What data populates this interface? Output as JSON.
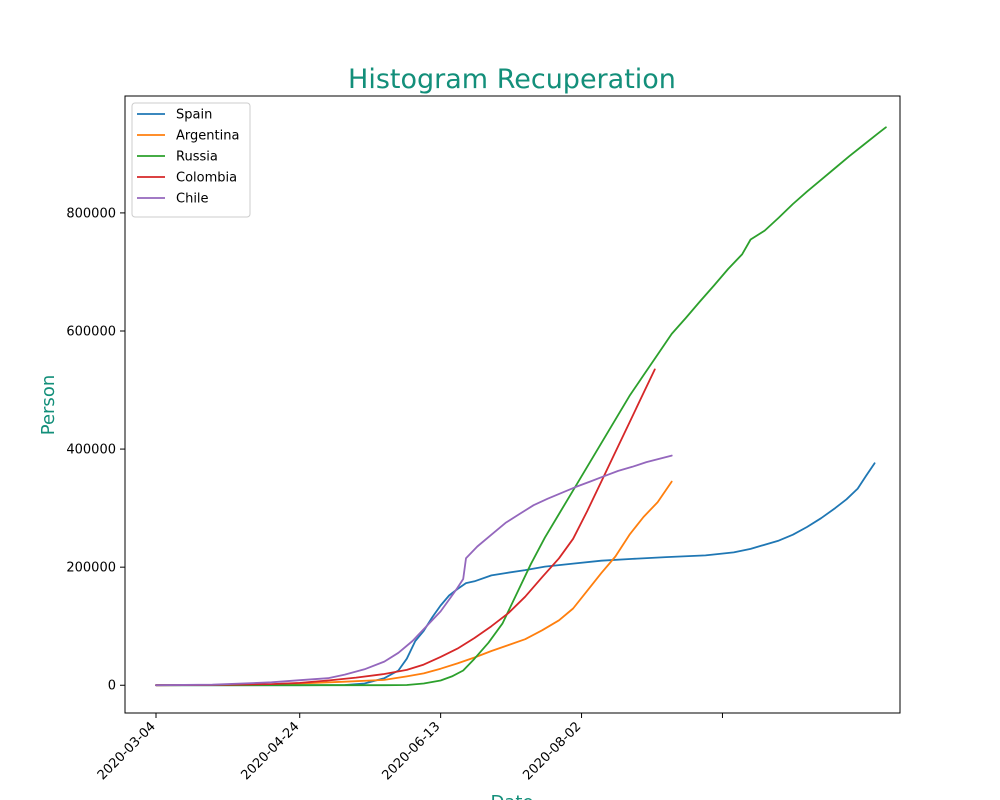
{
  "colors": {
    "title": "#138f7a",
    "axis_label": "#138f7a"
  },
  "chart_data": {
    "type": "line",
    "title": "Histogram Recuperation",
    "xlabel": "Date",
    "ylabel": "Person",
    "x_ticks": [
      {
        "date": "2020-03-04",
        "label": "2020-03-04"
      },
      {
        "date": "2020-04-24",
        "label": "2020-04-24"
      },
      {
        "date": "2020-06-13",
        "label": "2020-06-13"
      },
      {
        "date": "2020-08-02",
        "label": "2020-08-02"
      },
      {
        "date": "2020-09-21",
        "label": ""
      }
    ],
    "y_ticks": [
      {
        "value": 0,
        "label": "0"
      },
      {
        "value": 200000,
        "label": "200000"
      },
      {
        "value": 400000,
        "label": "400000"
      },
      {
        "value": 600000,
        "label": "600000"
      },
      {
        "value": 800000,
        "label": "800000"
      }
    ],
    "xlim": [
      "2020-02-22",
      "2020-11-23"
    ],
    "ylim": [
      -47000,
      998000
    ],
    "grid": false,
    "legend_position": "top-left",
    "series": [
      {
        "name": "Spain",
        "color": "#1f77b4",
        "points": [
          [
            "2020-03-04",
            0
          ],
          [
            "2020-03-24",
            0
          ],
          [
            "2020-04-24",
            0
          ],
          [
            "2020-05-10",
            500
          ],
          [
            "2020-05-17",
            3000
          ],
          [
            "2020-05-24",
            12000
          ],
          [
            "2020-05-29",
            25000
          ],
          [
            "2020-06-01",
            45000
          ],
          [
            "2020-06-04",
            75000
          ],
          [
            "2020-06-07",
            92000
          ],
          [
            "2020-06-10",
            115000
          ],
          [
            "2020-06-13",
            135000
          ],
          [
            "2020-06-16",
            152000
          ],
          [
            "2020-06-19",
            163000
          ],
          [
            "2020-06-22",
            173000
          ],
          [
            "2020-06-25",
            176000
          ],
          [
            "2020-07-01",
            186000
          ],
          [
            "2020-07-06",
            190000
          ],
          [
            "2020-07-13",
            195000
          ],
          [
            "2020-07-20",
            201000
          ],
          [
            "2020-07-30",
            206000
          ],
          [
            "2020-08-09",
            211000
          ],
          [
            "2020-08-20",
            214000
          ],
          [
            "2020-09-01",
            217000
          ],
          [
            "2020-09-15",
            220000
          ],
          [
            "2020-09-25",
            225000
          ],
          [
            "2020-10-01",
            231000
          ],
          [
            "2020-10-06",
            238000
          ],
          [
            "2020-10-11",
            245000
          ],
          [
            "2020-10-16",
            255000
          ],
          [
            "2020-10-21",
            268000
          ],
          [
            "2020-10-26",
            283000
          ],
          [
            "2020-10-31",
            300000
          ],
          [
            "2020-11-04",
            315000
          ],
          [
            "2020-11-08",
            333000
          ],
          [
            "2020-11-11",
            355000
          ],
          [
            "2020-11-14",
            376000
          ]
        ]
      },
      {
        "name": "Argentina",
        "color": "#ff7f0e",
        "points": [
          [
            "2020-03-04",
            0
          ],
          [
            "2020-03-24",
            500
          ],
          [
            "2020-04-14",
            1500
          ],
          [
            "2020-04-24",
            3000
          ],
          [
            "2020-05-10",
            6000
          ],
          [
            "2020-05-24",
            9000
          ],
          [
            "2020-06-01",
            15000
          ],
          [
            "2020-06-07",
            20000
          ],
          [
            "2020-06-13",
            28000
          ],
          [
            "2020-06-19",
            37000
          ],
          [
            "2020-06-25",
            47000
          ],
          [
            "2020-07-01",
            58000
          ],
          [
            "2020-07-07",
            68000
          ],
          [
            "2020-07-13",
            78000
          ],
          [
            "2020-07-19",
            93000
          ],
          [
            "2020-07-25",
            110000
          ],
          [
            "2020-07-30",
            130000
          ],
          [
            "2020-08-04",
            160000
          ],
          [
            "2020-08-09",
            190000
          ],
          [
            "2020-08-14",
            218000
          ],
          [
            "2020-08-19",
            255000
          ],
          [
            "2020-08-24",
            285000
          ],
          [
            "2020-08-29",
            310000
          ],
          [
            "2020-09-03",
            345000
          ]
        ]
      },
      {
        "name": "Russia",
        "color": "#2ca02c",
        "points": [
          [
            "2020-03-04",
            0
          ],
          [
            "2020-04-24",
            0
          ],
          [
            "2020-05-24",
            0
          ],
          [
            "2020-06-01",
            500
          ],
          [
            "2020-06-07",
            3000
          ],
          [
            "2020-06-13",
            8000
          ],
          [
            "2020-06-17",
            15000
          ],
          [
            "2020-06-21",
            25000
          ],
          [
            "2020-06-25",
            45000
          ],
          [
            "2020-06-30",
            72000
          ],
          [
            "2020-07-05",
            105000
          ],
          [
            "2020-07-10",
            155000
          ],
          [
            "2020-07-15",
            205000
          ],
          [
            "2020-07-20",
            250000
          ],
          [
            "2020-07-25",
            290000
          ],
          [
            "2020-07-30",
            330000
          ],
          [
            "2020-08-04",
            370000
          ],
          [
            "2020-08-09",
            410000
          ],
          [
            "2020-08-14",
            450000
          ],
          [
            "2020-08-19",
            490000
          ],
          [
            "2020-08-24",
            525000
          ],
          [
            "2020-08-29",
            560000
          ],
          [
            "2020-09-03",
            595000
          ],
          [
            "2020-09-08",
            622000
          ],
          [
            "2020-09-13",
            650000
          ],
          [
            "2020-09-18",
            677000
          ],
          [
            "2020-09-23",
            705000
          ],
          [
            "2020-09-28",
            730000
          ],
          [
            "2020-10-01",
            755000
          ],
          [
            "2020-10-06",
            770000
          ],
          [
            "2020-10-11",
            792000
          ],
          [
            "2020-10-16",
            815000
          ],
          [
            "2020-10-21",
            836000
          ],
          [
            "2020-10-26",
            856000
          ],
          [
            "2020-10-31",
            876000
          ],
          [
            "2020-11-05",
            896000
          ],
          [
            "2020-11-10",
            915000
          ],
          [
            "2020-11-15",
            934000
          ],
          [
            "2020-11-18",
            945000
          ]
        ]
      },
      {
        "name": "Colombia",
        "color": "#d62728",
        "points": [
          [
            "2020-03-04",
            0
          ],
          [
            "2020-03-24",
            500
          ],
          [
            "2020-04-14",
            2000
          ],
          [
            "2020-04-24",
            4000
          ],
          [
            "2020-05-04",
            8000
          ],
          [
            "2020-05-14",
            13000
          ],
          [
            "2020-05-24",
            19000
          ],
          [
            "2020-06-01",
            26000
          ],
          [
            "2020-06-07",
            35000
          ],
          [
            "2020-06-13",
            48000
          ],
          [
            "2020-06-19",
            62000
          ],
          [
            "2020-06-25",
            80000
          ],
          [
            "2020-07-01",
            100000
          ],
          [
            "2020-07-07",
            122000
          ],
          [
            "2020-07-13",
            150000
          ],
          [
            "2020-07-19",
            183000
          ],
          [
            "2020-07-25",
            215000
          ],
          [
            "2020-07-30",
            248000
          ],
          [
            "2020-08-04",
            295000
          ],
          [
            "2020-08-09",
            345000
          ],
          [
            "2020-08-14",
            395000
          ],
          [
            "2020-08-19",
            445000
          ],
          [
            "2020-08-24",
            495000
          ],
          [
            "2020-08-28",
            535000
          ]
        ]
      },
      {
        "name": "Chile",
        "color": "#9467bd",
        "points": [
          [
            "2020-03-04",
            0
          ],
          [
            "2020-03-24",
            1000
          ],
          [
            "2020-04-14",
            5000
          ],
          [
            "2020-04-24",
            8500
          ],
          [
            "2020-05-04",
            12000
          ],
          [
            "2020-05-10",
            18000
          ],
          [
            "2020-05-17",
            27000
          ],
          [
            "2020-05-24",
            40000
          ],
          [
            "2020-05-29",
            55000
          ],
          [
            "2020-06-03",
            75000
          ],
          [
            "2020-06-08",
            100000
          ],
          [
            "2020-06-13",
            125000
          ],
          [
            "2020-06-16",
            145000
          ],
          [
            "2020-06-19",
            165000
          ],
          [
            "2020-06-21",
            180000
          ],
          [
            "2020-06-22",
            215000
          ],
          [
            "2020-06-26",
            235000
          ],
          [
            "2020-07-01",
            255000
          ],
          [
            "2020-07-06",
            275000
          ],
          [
            "2020-07-11",
            290000
          ],
          [
            "2020-07-16",
            305000
          ],
          [
            "2020-07-21",
            316000
          ],
          [
            "2020-07-26",
            326000
          ],
          [
            "2020-07-31",
            336000
          ],
          [
            "2020-08-05",
            345000
          ],
          [
            "2020-08-10",
            354000
          ],
          [
            "2020-08-15",
            363000
          ],
          [
            "2020-08-20",
            370000
          ],
          [
            "2020-08-25",
            378000
          ],
          [
            "2020-08-30",
            384000
          ],
          [
            "2020-09-03",
            389000
          ]
        ]
      }
    ]
  }
}
